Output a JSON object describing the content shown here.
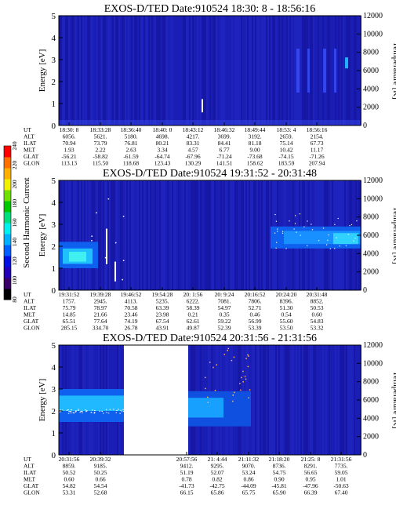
{
  "colorbar": {
    "label": "Second Harmonic Current",
    "ticks": [
      80,
      100,
      120,
      140,
      160,
      180,
      200,
      220,
      240
    ],
    "colors": [
      "#000000",
      "#3a0068",
      "#2200b8",
      "#0010e0",
      "#0060ff",
      "#00b0ff",
      "#00f0f0",
      "#00e080",
      "#00c800",
      "#70e000",
      "#f0f000",
      "#ffb000",
      "#ff7000",
      "#ff0000"
    ]
  },
  "chart_data": [
    {
      "type": "heatmap",
      "title": "EXOS-D/TED  Date:910524  18:30: 8 - 18:56:16",
      "ylabel": "Energy [eV]",
      "y2label": "Temperature [K]",
      "ylim": [
        0,
        5
      ],
      "y2lim": [
        0,
        12000
      ],
      "yticks": [
        "0",
        "1",
        "2",
        "3",
        "4",
        "5"
      ],
      "y2ticks": [
        "0",
        "2000",
        "4000",
        "6000",
        "8000",
        "10000",
        "12000"
      ],
      "ephemeris": [
        {
          "label": "UT",
          "values": [
            "18:30: 8",
            "18:33:28",
            "18:36:40",
            "18:40: 0",
            "18:43:12",
            "18:46:32",
            "18:49:44",
            "18:53: 4",
            "18:56:16"
          ]
        },
        {
          "label": "ALT",
          "values": [
            "6056.",
            "5621.",
            "5180.",
            "4698.",
            "4217.",
            "3699.",
            "3192.",
            "2659.",
            "2154."
          ]
        },
        {
          "label": "ILAT",
          "values": [
            "70.94",
            "73.79",
            "76.81",
            "80.21",
            "83.31",
            "84.41",
            "81.18",
            "75.14",
            "67.73"
          ]
        },
        {
          "label": "MLT",
          "values": [
            "1.93",
            "2.22",
            "2.63",
            "3.34",
            "4.57",
            "6.77",
            "9.00",
            "10.42",
            "11.17"
          ]
        },
        {
          "label": "GLAT",
          "values": [
            "-56.21",
            "-58.82",
            "-61.59",
            "-64.74",
            "-67.96",
            "-71.24",
            "-73.68",
            "-74.15",
            "-71.26"
          ]
        },
        {
          "label": "GLON",
          "values": [
            "113.13",
            "115.50",
            "118.68",
            "123.43",
            "130.29",
            "141.51",
            "158.62",
            "183.59",
            "207.94"
          ]
        }
      ]
    },
    {
      "type": "heatmap",
      "title": "EXOS-D/TED  Date:910524  19:31:52 - 20:31:48",
      "ylabel": "Energy [eV]",
      "y2label": "Temperature [K]",
      "ylim": [
        0,
        5
      ],
      "y2lim": [
        0,
        12000
      ],
      "yticks": [
        "0",
        "1",
        "2",
        "3",
        "4",
        "5"
      ],
      "y2ticks": [
        "0",
        "2000",
        "4000",
        "6000",
        "8000",
        "10000",
        "12000"
      ],
      "ephemeris": [
        {
          "label": "UT",
          "values": [
            "19:31:52",
            "19:39:28",
            "19:46:52",
            "19:54:28",
            "20: 1:56",
            "20: 9:24",
            "20:16:52",
            "20:24:20",
            "20:31:48"
          ]
        },
        {
          "label": "ALT",
          "values": [
            "1757.",
            "2945.",
            "4113.",
            "5235.",
            "6222.",
            "7081.",
            "7806.",
            "8396.",
            "8852."
          ]
        },
        {
          "label": "ILAT",
          "values": [
            "75.79",
            "78.97",
            "70.58",
            "63.39",
            "58.39",
            "54.97",
            "52.71",
            "51.30",
            "50.53"
          ]
        },
        {
          "label": "MLT",
          "values": [
            "14.85",
            "21.66",
            "23.46",
            "23.98",
            "0.21",
            "0.35",
            "0.46",
            "0.54",
            "0.60"
          ]
        },
        {
          "label": "GLAT",
          "values": [
            "65.51",
            "77.64",
            "74.19",
            "67.54",
            "62.61",
            "59.22",
            "56.99",
            "55.60",
            "54.83"
          ]
        },
        {
          "label": "GLON",
          "values": [
            "285.15",
            "334.70",
            "26.78",
            "43.91",
            "49.87",
            "52.39",
            "53.39",
            "53.50",
            "53.32"
          ]
        }
      ]
    },
    {
      "type": "heatmap",
      "title": "EXOS-D/TED  Date:910524  20:31:56 - 21:31:56",
      "ylabel": "Energy [eV]",
      "y2label": "Temperature [K]",
      "ylim": [
        0,
        5
      ],
      "y2lim": [
        0,
        12000
      ],
      "yticks": [
        "0",
        "1",
        "2",
        "3",
        "4",
        "5"
      ],
      "y2ticks": [
        "0",
        "2000",
        "4000",
        "6000",
        "8000",
        "10000",
        "12000"
      ],
      "ephemeris": [
        {
          "label": "UT",
          "values": [
            "20:31:56",
            "20:39:32",
            "",
            "",
            "20:57:56",
            "21: 4:44",
            "21:11:32",
            "21:18:20",
            "21:25: 8",
            "21:31:56"
          ]
        },
        {
          "label": "ALT",
          "values": [
            "8859.",
            "9185.",
            "",
            "",
            "9412.",
            "9295.",
            "9070.",
            "8736.",
            "8291.",
            "7735."
          ]
        },
        {
          "label": "ILAT",
          "values": [
            "50.52",
            "50.25",
            "",
            "",
            "51.19",
            "52.07",
            "53.24",
            "54.75",
            "56.65",
            "59.05"
          ]
        },
        {
          "label": "MLT",
          "values": [
            "0.60",
            "0.66",
            "",
            "",
            "0.78",
            "0.82",
            "0.86",
            "0.90",
            "0.95",
            "1.01"
          ]
        },
        {
          "label": "GLAT",
          "values": [
            "54.82",
            "54.54",
            "",
            "",
            "-41.73",
            "-42.75",
            "-44.09",
            "-45.81",
            "-47.96",
            "-50.63"
          ]
        },
        {
          "label": "GLON",
          "values": [
            "53.31",
            "52.68",
            "",
            "",
            "66.15",
            "65.86",
            "65.75",
            "65.90",
            "66.39",
            "67.40"
          ]
        }
      ]
    }
  ]
}
